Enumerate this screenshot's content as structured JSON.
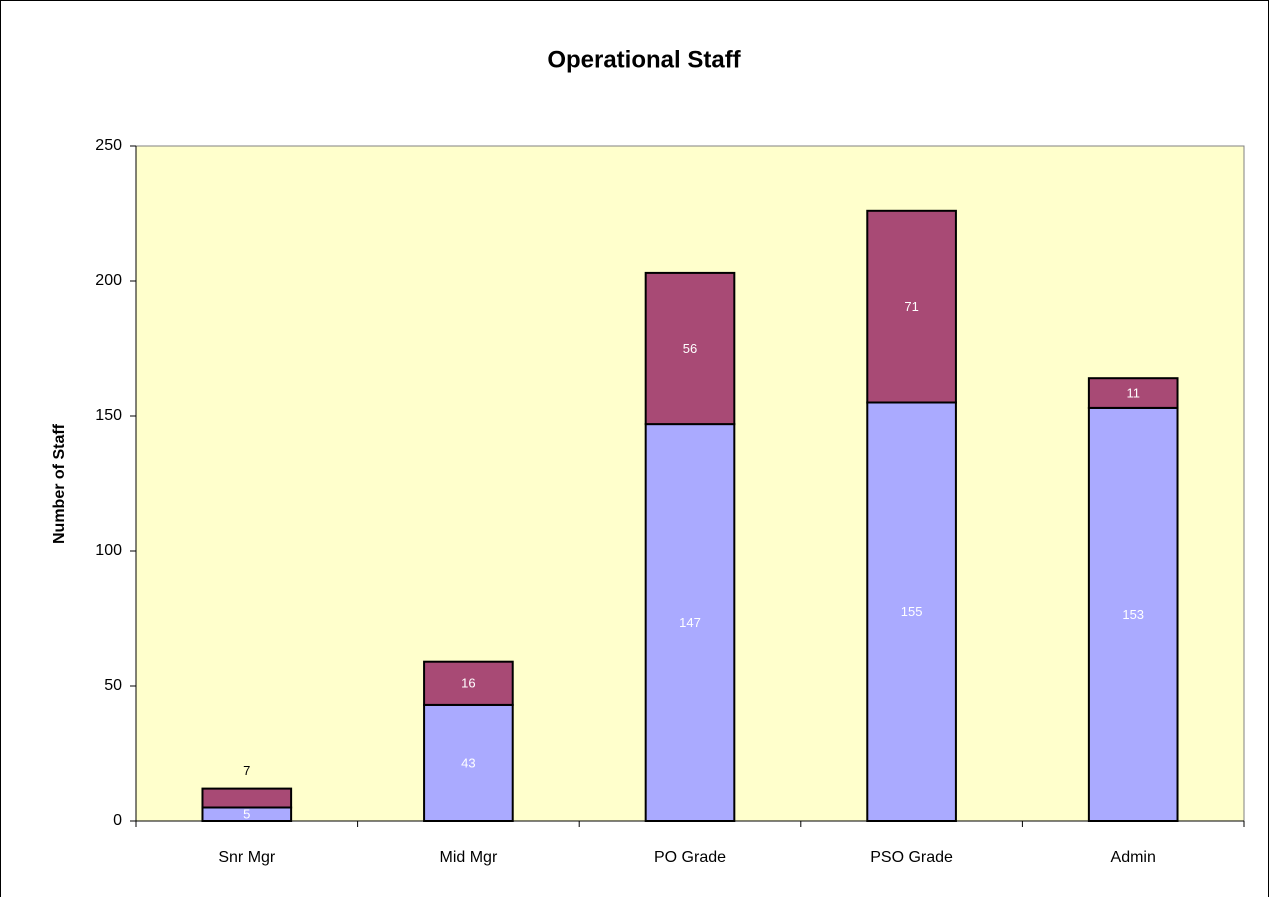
{
  "chart_data": {
    "type": "stacked_bar",
    "title": "Operational Staff",
    "y_label": "Number of Staff",
    "categories": [
      "Snr Mgr",
      "Mid Mgr",
      "PO Grade",
      "PSO Grade",
      "Admin"
    ],
    "series": [
      {
        "color": "#aaaaff",
        "values": [
          5,
          43,
          147,
          155,
          153
        ]
      },
      {
        "color": "#a84a75",
        "values": [
          7,
          16,
          56,
          71,
          11
        ]
      }
    ],
    "ylim": [
      0,
      250
    ],
    "yticks": [
      0,
      50,
      100,
      150,
      200,
      250
    ],
    "plot_background": "#ffffcc"
  }
}
